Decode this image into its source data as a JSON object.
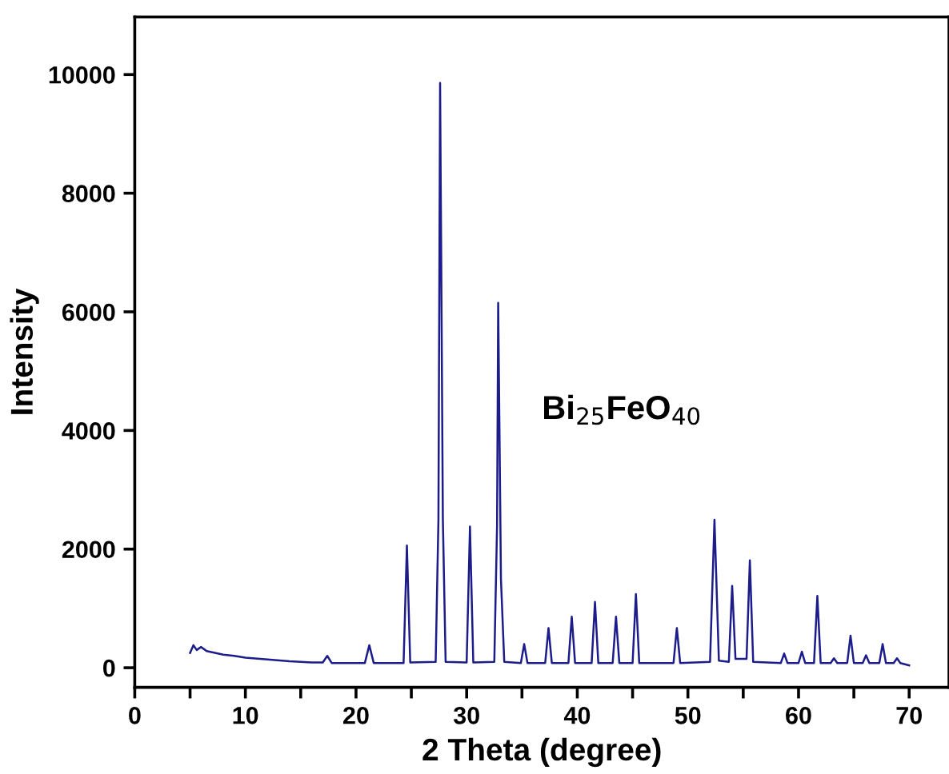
{
  "chart_data": {
    "type": "line",
    "xlabel": "2 Theta (degree)",
    "ylabel": "Intensity",
    "annotations": [
      "Bi$_{25}$FeO$_{40}$"
    ],
    "xlim": [
      0,
      73.6
    ],
    "ylim": [
      -330,
      10970
    ],
    "xticks": [
      0,
      {
        "value": 5,
        "label": null
      },
      10,
      {
        "value": 15,
        "label": null
      },
      20,
      {
        "value": 25,
        "label": null
      },
      30,
      {
        "value": 35,
        "label": null
      },
      40,
      {
        "value": 45,
        "label": null
      },
      50,
      {
        "value": 55,
        "label": null
      },
      60,
      {
        "value": 65,
        "label": null
      },
      70
    ],
    "yticks": [
      0,
      2000,
      4000,
      6000,
      8000,
      10000
    ],
    "grid": false,
    "legend": false,
    "marker": "none",
    "line_style": "solid",
    "series": [
      {
        "color": "#1c1c8a",
        "x": [
          5.0,
          5.3,
          5.6,
          6.0,
          6.5,
          7,
          8,
          9,
          10,
          12,
          14,
          16,
          17.0,
          17.4,
          17.8,
          20.8,
          21.2,
          21.6,
          24.3,
          24.6,
          24.9,
          27.2,
          27.45,
          27.6,
          27.85,
          28.1,
          30.0,
          30.3,
          30.6,
          32.5,
          32.75,
          32.85,
          33.1,
          33.4,
          34.9,
          35.2,
          35.5,
          37.1,
          37.4,
          37.7,
          39.2,
          39.5,
          39.8,
          41.3,
          41.6,
          41.9,
          43.2,
          43.5,
          43.8,
          45.0,
          45.3,
          45.6,
          48.7,
          49.0,
          49.3,
          52.0,
          52.4,
          52.8,
          53.7,
          54.0,
          54.3,
          55.3,
          55.6,
          55.9,
          58.4,
          58.7,
          59.0,
          60.0,
          60.3,
          60.6,
          61.4,
          61.7,
          62.0,
          62.9,
          63.2,
          63.5,
          64.4,
          64.7,
          65.0,
          65.8,
          66.1,
          66.4,
          67.3,
          67.6,
          67.9,
          68.6,
          68.9,
          69.2,
          70.0
        ],
        "values": [
          250,
          380,
          300,
          350,
          280,
          260,
          220,
          200,
          170,
          140,
          110,
          90,
          90,
          200,
          80,
          80,
          380,
          80,
          80,
          2060,
          90,
          100,
          2500,
          9860,
          2500,
          100,
          90,
          2380,
          90,
          100,
          2400,
          6150,
          1500,
          100,
          80,
          400,
          80,
          80,
          670,
          80,
          80,
          860,
          80,
          80,
          1110,
          80,
          80,
          860,
          80,
          80,
          1240,
          80,
          80,
          670,
          80,
          100,
          2495,
          120,
          100,
          1380,
          150,
          150,
          1810,
          100,
          80,
          240,
          80,
          80,
          270,
          80,
          80,
          1210,
          80,
          80,
          160,
          80,
          80,
          540,
          80,
          80,
          210,
          80,
          80,
          400,
          80,
          80,
          160,
          80,
          40
        ]
      }
    ]
  }
}
